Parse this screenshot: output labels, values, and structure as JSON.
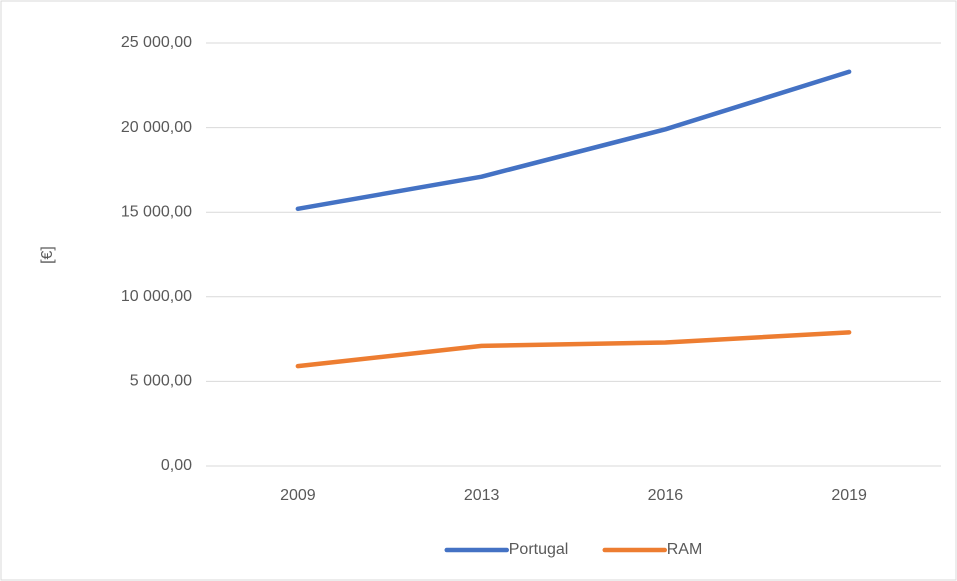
{
  "chart_data": {
    "type": "line",
    "y_label": "[€]",
    "categories": [
      "2009",
      "2013",
      "2016",
      "2019"
    ],
    "series": [
      {
        "name": "Portugal",
        "color": "#4472c4",
        "values": [
          15200,
          17100,
          19900,
          23300
        ]
      },
      {
        "name": "RAM",
        "color": "#ed7d31",
        "values": [
          5900,
          7100,
          7300,
          7900
        ]
      }
    ],
    "ylim": [
      0,
      25000
    ],
    "yticks": [
      {
        "value": 0,
        "label": "0,00"
      },
      {
        "value": 5000,
        "label": "5 000,00"
      },
      {
        "value": 10000,
        "label": "10 000,00"
      },
      {
        "value": 15000,
        "label": "15 000,00"
      },
      {
        "value": 20000,
        "label": "20 000,00"
      },
      {
        "value": 25000,
        "label": "25 000,00"
      }
    ],
    "grid": true,
    "legend": "bottom"
  }
}
